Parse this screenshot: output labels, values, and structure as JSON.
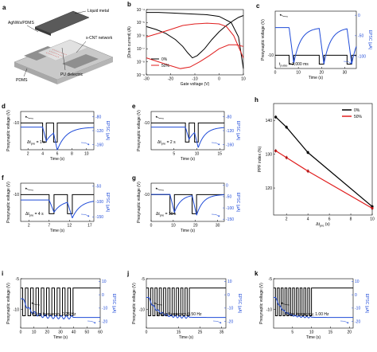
{
  "panels": {
    "a": {
      "label": "a",
      "callouts": [
        "Liquid metal",
        "AgNWs/PDMS",
        "s-CNT network",
        "PU dielectric",
        "PDMS"
      ]
    },
    "b": {
      "label": "b"
    },
    "c": {
      "label": "c",
      "annotation": "t_pulse = 2,000 ms"
    },
    "d": {
      "label": "d",
      "annotation": "Δt_pre = 1 s"
    },
    "e": {
      "label": "e",
      "annotation": "Δt_pre = 2 s"
    },
    "f": {
      "label": "f",
      "annotation": "Δt_pre = 4 s"
    },
    "g": {
      "label": "g",
      "annotation": "Δt_pre = 10 s"
    },
    "h": {
      "label": "h"
    },
    "i": {
      "label": "i",
      "annotation": "Pulse frequency, 0.25 Hz"
    },
    "j": {
      "label": "j",
      "annotation": "Pulse frequency, 0.50 Hz"
    },
    "k": {
      "label": "k",
      "annotation": "Pulse frequency, 1.00 Hz"
    }
  },
  "chart_data": [
    {
      "id": "b",
      "type": "line",
      "xlabel": "Gate voltage (V)",
      "ylabel": "|Drain current| (A)",
      "xlim": [
        -30,
        10
      ],
      "xticks": [
        "-30",
        "-20",
        "-10",
        "0",
        "10"
      ],
      "yscale": "log",
      "ylim": [
        1e-09,
        0.0001
      ],
      "yticks": [
        "10⁻⁴",
        "10⁻⁵",
        "10⁻⁶",
        "10⁻⁷",
        "10⁻⁸",
        "10⁻⁹"
      ],
      "legend": "bottom-left",
      "series": [
        {
          "name": "0%",
          "color": "#000000",
          "x": [
            -30,
            -26,
            -22,
            -18,
            -15,
            -13,
            -11,
            -9,
            -6,
            -3,
            0,
            3,
            6,
            8,
            10
          ],
          "y": [
            5e-06,
            3e-06,
            1.5e-06,
            5e-07,
            1.5e-07,
            5e-08,
            2e-08,
            3e-08,
            1e-07,
            5e-07,
            2e-06,
            6e-06,
            1.5e-05,
            2.5e-05,
            3.5e-05
          ]
        },
        {
          "name": "0%",
          "color": "#000000",
          "x": [
            -30,
            -25,
            -20,
            -15,
            -10,
            -5,
            0,
            5,
            8,
            10
          ],
          "y": [
            6e-05,
            6e-05,
            5.5e-05,
            5e-05,
            4.5e-05,
            4e-05,
            3e-05,
            1e-05,
            8e-07,
            3e-09
          ]
        },
        {
          "name": "50%",
          "color": "#e01e1e",
          "x": [
            -30,
            -25,
            -20,
            -15,
            -10,
            -5,
            0,
            3,
            6,
            10
          ],
          "y": [
            8e-07,
            1.5e-06,
            3e-06,
            6e-06,
            8e-06,
            9e-06,
            8e-06,
            5e-06,
            1e-06,
            2e-08
          ]
        },
        {
          "name": "50%",
          "color": "#e01e1e",
          "x": [
            -30,
            -25,
            -20,
            -16,
            -12,
            -8,
            -4,
            0,
            4,
            7,
            10
          ],
          "y": [
            2e-08,
            1e-08,
            5e-09,
            3e-09,
            4e-09,
            1e-08,
            3e-08,
            1e-07,
            2e-07,
            2e-07,
            1.5e-07
          ]
        }
      ]
    },
    {
      "id": "c",
      "type": "line",
      "xlabel": "Time (s)",
      "ylabel": "Presynaptic voltage (V)",
      "y2label": "EPSC (µA)",
      "xlim": [
        0,
        35
      ],
      "xticks": [
        "0",
        "10",
        "20",
        "30"
      ],
      "ylim": [
        -13,
        0
      ],
      "yticks": [
        "-10"
      ],
      "y2lim": [
        -130,
        10
      ],
      "y2ticks": [
        "0",
        "-50",
        "-100"
      ],
      "pulses": {
        "starts": [
          6,
          19,
          31
        ],
        "width": 2,
        "base": -10,
        "low": -12
      },
      "epsc": {
        "baseline": -30,
        "peak": -118,
        "tau": 3
      }
    },
    {
      "id": "d",
      "type": "line",
      "xlabel": "Time (s)",
      "ylabel": "Presynaptic voltage (V)",
      "y2label": "EPSC (µA)",
      "xlim": [
        1,
        11
      ],
      "xticks": [
        "2",
        "4",
        "6",
        "8",
        "10"
      ],
      "ylim": [
        -13.5,
        -8.5
      ],
      "yticks": [
        "-10"
      ],
      "y2lim": [
        -175,
        -65
      ],
      "y2ticks": [
        "-80",
        "-120",
        "-160"
      ],
      "pulses": {
        "starts": [
          4,
          5.5
        ],
        "width": 0.5,
        "base": -10,
        "low": -12.5
      },
      "epsc": {
        "baseline": -110,
        "peaks": [
          -150,
          -165
        ],
        "tau": 1.2
      }
    },
    {
      "id": "e",
      "type": "line",
      "xlabel": "Time (s)",
      "ylabel": "Presynaptic voltage (V)",
      "y2label": "EPSC (µA)",
      "xlim": [
        0,
        16
      ],
      "xticks": [
        "5",
        "10",
        "15"
      ],
      "ylim": [
        -13.5,
        -8.5
      ],
      "yticks": [
        "-10"
      ],
      "y2lim": [
        -175,
        -65
      ],
      "y2ticks": [
        "-80",
        "-120",
        "-160"
      ],
      "pulses": {
        "starts": [
          7.5,
          9.5
        ],
        "width": 0.8,
        "base": -10,
        "low": -12.5
      },
      "epsc": {
        "baseline": -110,
        "peaks": [
          -145,
          -160
        ],
        "tau": 1.5
      }
    },
    {
      "id": "f",
      "type": "line",
      "xlabel": "Time (s)",
      "ylabel": "Presynaptic voltage (V)",
      "y2label": "EPSC (µA)",
      "xlim": [
        0,
        18
      ],
      "xticks": [
        "2",
        "7",
        "12",
        "17"
      ],
      "ylim": [
        -13.5,
        -8.5
      ],
      "yticks": [
        "-10"
      ],
      "y2lim": [
        -165,
        -40
      ],
      "y2ticks": [
        "-50",
        "-100",
        "-150"
      ],
      "pulses": {
        "starts": [
          7,
          11.5
        ],
        "width": 1.2,
        "base": -10,
        "low": -12.5
      },
      "epsc": {
        "baseline": -95,
        "peaks": [
          -135,
          -150
        ],
        "tau": 2
      }
    },
    {
      "id": "g",
      "type": "line",
      "xlabel": "Time (s)",
      "ylabel": "Presynaptic voltage (V)",
      "y2label": "EPSC (µA)",
      "xlim": [
        0,
        33
      ],
      "xticks": [
        "0",
        "10",
        "20",
        "30"
      ],
      "ylim": [
        -13.5,
        -8.5
      ],
      "yticks": [
        "-10"
      ],
      "y2lim": [
        -160,
        10
      ],
      "y2ticks": [
        "0",
        "-50",
        "-100",
        "-150"
      ],
      "pulses": {
        "starts": [
          8.5,
          18.5
        ],
        "width": 2,
        "base": -10,
        "low": -12.5
      },
      "epsc": {
        "baseline": -40,
        "peaks": [
          -120,
          -130
        ],
        "tau": 3
      }
    },
    {
      "id": "h",
      "type": "line",
      "xlabel": "Δt_pre (s)",
      "ylabel": "PPF index (%)",
      "xlim": [
        0.8,
        10
      ],
      "xticks": [
        "2",
        "4",
        "6",
        "8",
        "10"
      ],
      "ylim": [
        112,
        145
      ],
      "yticks": [
        "140",
        "130",
        "120"
      ],
      "legend": "top-right",
      "series": [
        {
          "name": "0%",
          "color": "#000000",
          "x": [
            1,
            2,
            4,
            10
          ],
          "y": [
            141,
            138,
            130.5,
            114.5
          ]
        },
        {
          "name": "50%",
          "color": "#e01e1e",
          "x": [
            1,
            2,
            4,
            10
          ],
          "y": [
            131,
            129,
            125,
            114
          ]
        }
      ]
    },
    {
      "id": "i",
      "type": "line",
      "xlabel": "Time (s)",
      "ylabel": "Presynaptic voltage (V)",
      "y2label": "EPSC (µA)",
      "xlim": [
        0,
        60
      ],
      "xticks": [
        "0",
        "10",
        "20",
        "30",
        "40",
        "50",
        "60"
      ],
      "ylim": [
        -13,
        -5
      ],
      "yticks": [
        "-10",
        "-5"
      ],
      "y2lim": [
        -25,
        12
      ],
      "y2ticks": [
        "10",
        "0",
        "-10",
        "-20"
      ],
      "pulses": {
        "count": 10,
        "start": 1.5,
        "period": 4,
        "duty": 0.5,
        "base": -6.5,
        "low": -11
      },
      "epsc": {
        "start": -3,
        "final": -17,
        "tau": 6,
        "ripple": 1.2
      }
    },
    {
      "id": "j",
      "type": "line",
      "xlabel": "Time (s)",
      "ylabel": "Presynaptic voltage (V)",
      "y2label": "EPSC (µA)",
      "xlim": [
        0,
        37
      ],
      "xticks": [
        "0",
        "15",
        "25",
        "35"
      ],
      "ylim": [
        -13,
        -5
      ],
      "yticks": [
        "-10",
        "-5"
      ],
      "y2lim": [
        -25,
        12
      ],
      "y2ticks": [
        "10",
        "0",
        "-10",
        "-20"
      ],
      "pulses": {
        "count": 10,
        "start": 1,
        "period": 2,
        "duty": 0.5,
        "base": -6.5,
        "low": -11
      },
      "epsc": {
        "start": -2,
        "final": -17,
        "tau": 4,
        "ripple": 0.8
      }
    },
    {
      "id": "k",
      "type": "line",
      "xlabel": "Time (s)",
      "ylabel": "Presynaptic voltage (V)",
      "y2label": "EPSC (µA)",
      "xlim": [
        0,
        21
      ],
      "xticks": [
        "5",
        "10",
        "15",
        "20"
      ],
      "ylim": [
        -13,
        -5
      ],
      "yticks": [
        "-10",
        "-5"
      ],
      "y2lim": [
        -25,
        12
      ],
      "y2ticks": [
        "10",
        "0",
        "-10",
        "-20"
      ],
      "pulses": {
        "count": 10,
        "start": 0.5,
        "period": 1,
        "duty": 0.5,
        "base": -6.5,
        "low": -11
      },
      "epsc": {
        "start": -2,
        "final": -17,
        "tau": 2,
        "ripple": 0.5
      }
    }
  ]
}
